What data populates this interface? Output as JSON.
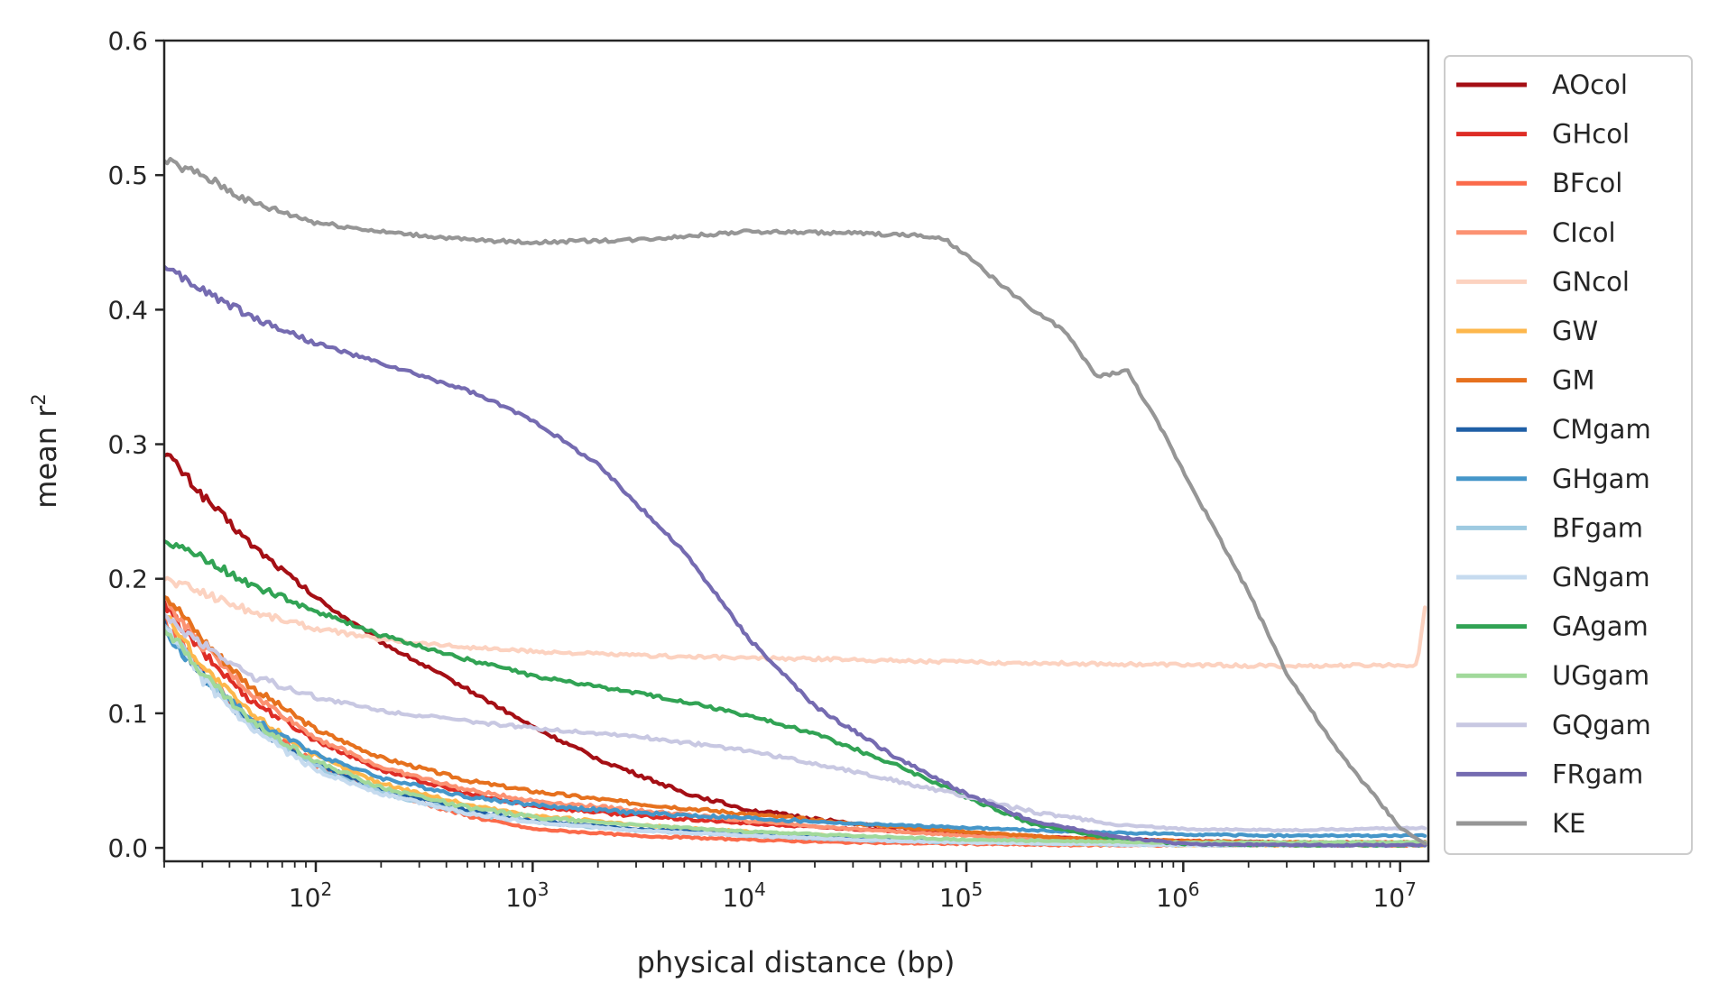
{
  "chart_data": {
    "type": "line",
    "xlabel": "physical distance (bp)",
    "ylabel": "mean r",
    "ylabel_superscript": "2",
    "x_scale": "log",
    "xlim": [
      20,
      13500000
    ],
    "ylim": [
      -0.01,
      0.6
    ],
    "y_ticks": [
      0.0,
      0.1,
      0.2,
      0.3,
      0.4,
      0.5,
      0.6
    ],
    "y_tick_labels": [
      "0.0",
      "0.1",
      "0.2",
      "0.3",
      "0.4",
      "0.5",
      "0.6"
    ],
    "x_ticks": [
      100,
      1000,
      10000,
      100000,
      1000000,
      10000000
    ],
    "x_tick_bases": [
      "10",
      "10",
      "10",
      "10",
      "10",
      "10"
    ],
    "x_tick_exponents": [
      "2",
      "3",
      "4",
      "5",
      "6",
      "7"
    ],
    "grid": false,
    "legend_position": "outside-right",
    "series": [
      {
        "name": "AOcol",
        "color": "#a50f15",
        "x": [
          20,
          30,
          50,
          100,
          200,
          500,
          1000,
          2000,
          5000,
          10000,
          30000,
          100000,
          300000,
          1000000,
          3000000,
          13000000
        ],
        "y": [
          0.295,
          0.262,
          0.226,
          0.186,
          0.153,
          0.118,
          0.09,
          0.066,
          0.041,
          0.028,
          0.018,
          0.011,
          0.007,
          0.005,
          0.004,
          0.003
        ]
      },
      {
        "name": "GHcol",
        "color": "#de2d26",
        "x": [
          20,
          30,
          50,
          100,
          200,
          500,
          1000,
          3000,
          10000,
          30000,
          100000,
          300000,
          1000000,
          3000000,
          13000000
        ],
        "y": [
          0.18,
          0.145,
          0.11,
          0.08,
          0.058,
          0.04,
          0.031,
          0.024,
          0.018,
          0.014,
          0.01,
          0.007,
          0.005,
          0.004,
          0.004
        ]
      },
      {
        "name": "BFcol",
        "color": "#fb6a4a",
        "x": [
          20,
          30,
          50,
          100,
          200,
          500,
          1000,
          3000,
          10000,
          30000,
          100000,
          300000,
          1000000,
          3000000,
          13000000
        ],
        "y": [
          0.17,
          0.13,
          0.095,
          0.062,
          0.042,
          0.024,
          0.014,
          0.009,
          0.006,
          0.004,
          0.003,
          0.002,
          0.002,
          0.002,
          0.002
        ]
      },
      {
        "name": "CIcol",
        "color": "#fc9272",
        "x": [
          20,
          30,
          50,
          100,
          200,
          500,
          1000,
          3000,
          10000,
          30000,
          100000,
          300000,
          1000000,
          3000000,
          13000000
        ],
        "y": [
          0.185,
          0.15,
          0.115,
          0.082,
          0.06,
          0.043,
          0.035,
          0.028,
          0.02,
          0.014,
          0.009,
          0.006,
          0.004,
          0.003,
          0.003
        ]
      },
      {
        "name": "GNcol",
        "color": "#fcd2c0",
        "x": [
          20,
          30,
          50,
          100,
          200,
          500,
          1000,
          3000,
          10000,
          30000,
          100000,
          300000,
          1000000,
          3000000,
          12000000,
          13000000
        ],
        "y": [
          0.2,
          0.19,
          0.176,
          0.163,
          0.155,
          0.149,
          0.146,
          0.143,
          0.141,
          0.14,
          0.138,
          0.137,
          0.136,
          0.135,
          0.136,
          0.18
        ]
      },
      {
        "name": "GW",
        "color": "#fdb74c",
        "x": [
          20,
          30,
          50,
          100,
          200,
          500,
          1000,
          3000,
          10000,
          30000,
          100000,
          300000,
          1000000,
          3000000,
          13000000
        ],
        "y": [
          0.175,
          0.135,
          0.1,
          0.068,
          0.048,
          0.032,
          0.024,
          0.017,
          0.012,
          0.008,
          0.005,
          0.003,
          0.002,
          0.002,
          0.002
        ]
      },
      {
        "name": "GM",
        "color": "#e6711e",
        "x": [
          20,
          30,
          50,
          100,
          200,
          500,
          1000,
          3000,
          10000,
          30000,
          100000,
          300000,
          1000000,
          3000000,
          13000000
        ],
        "y": [
          0.19,
          0.155,
          0.12,
          0.088,
          0.067,
          0.05,
          0.042,
          0.033,
          0.025,
          0.018,
          0.012,
          0.007,
          0.005,
          0.004,
          0.004
        ]
      },
      {
        "name": "CMgam",
        "color": "#1f5fa6",
        "x": [
          20,
          30,
          50,
          100,
          200,
          500,
          1000,
          3000,
          10000,
          30000,
          100000,
          300000,
          1000000,
          3000000,
          13000000
        ],
        "y": [
          0.165,
          0.128,
          0.092,
          0.062,
          0.043,
          0.028,
          0.02,
          0.014,
          0.01,
          0.007,
          0.005,
          0.004,
          0.003,
          0.003,
          0.003
        ]
      },
      {
        "name": "GHgam",
        "color": "#4596c9",
        "x": [
          20,
          30,
          50,
          100,
          200,
          500,
          1000,
          3000,
          10000,
          30000,
          100000,
          300000,
          1000000,
          3000000,
          13000000
        ],
        "y": [
          0.16,
          0.128,
          0.096,
          0.07,
          0.052,
          0.038,
          0.032,
          0.026,
          0.022,
          0.018,
          0.015,
          0.012,
          0.01,
          0.009,
          0.009
        ]
      },
      {
        "name": "BFgam",
        "color": "#9ecae1",
        "x": [
          20,
          30,
          50,
          100,
          200,
          500,
          1000,
          3000,
          10000,
          30000,
          100000,
          300000,
          1000000,
          3000000,
          13000000
        ],
        "y": [
          0.165,
          0.128,
          0.092,
          0.06,
          0.041,
          0.026,
          0.019,
          0.013,
          0.009,
          0.006,
          0.004,
          0.003,
          0.002,
          0.002,
          0.002
        ]
      },
      {
        "name": "GNgam",
        "color": "#c6dbef",
        "x": [
          20,
          30,
          50,
          100,
          200,
          500,
          1000,
          3000,
          10000,
          30000,
          100000,
          300000,
          1000000,
          3000000,
          13000000
        ],
        "y": [
          0.165,
          0.125,
          0.088,
          0.058,
          0.04,
          0.026,
          0.019,
          0.013,
          0.009,
          0.006,
          0.004,
          0.003,
          0.002,
          0.002,
          0.002
        ]
      },
      {
        "name": "GAgam",
        "color": "#31a354",
        "x": [
          20,
          30,
          50,
          100,
          200,
          500,
          1000,
          2000,
          5000,
          10000,
          20000,
          50000,
          100000,
          200000,
          500000,
          1000000,
          3000000,
          13000000
        ],
        "y": [
          0.23,
          0.215,
          0.196,
          0.176,
          0.158,
          0.14,
          0.128,
          0.12,
          0.109,
          0.098,
          0.085,
          0.06,
          0.038,
          0.018,
          0.006,
          0.003,
          0.002,
          0.002
        ]
      },
      {
        "name": "UGgam",
        "color": "#a1d99b",
        "x": [
          20,
          30,
          50,
          100,
          200,
          500,
          1000,
          3000,
          10000,
          30000,
          100000,
          300000,
          1000000,
          3000000,
          13000000
        ],
        "y": [
          0.165,
          0.13,
          0.094,
          0.064,
          0.045,
          0.03,
          0.023,
          0.017,
          0.012,
          0.009,
          0.006,
          0.005,
          0.004,
          0.004,
          0.004
        ]
      },
      {
        "name": "GQgam",
        "color": "#c8c8e2",
        "x": [
          20,
          30,
          50,
          100,
          200,
          500,
          1000,
          3000,
          10000,
          30000,
          100000,
          200000,
          500000,
          1000000,
          3000000,
          13000000
        ],
        "y": [
          0.17,
          0.152,
          0.128,
          0.112,
          0.102,
          0.094,
          0.089,
          0.083,
          0.072,
          0.057,
          0.038,
          0.027,
          0.017,
          0.014,
          0.013,
          0.015
        ]
      },
      {
        "name": "FRgam",
        "color": "#756bb1",
        "x": [
          20,
          30,
          50,
          100,
          200,
          500,
          1000,
          2000,
          5000,
          10000,
          20000,
          50000,
          100000,
          200000,
          500000,
          1000000,
          3000000,
          13000000
        ],
        "y": [
          0.43,
          0.415,
          0.395,
          0.375,
          0.36,
          0.34,
          0.318,
          0.285,
          0.22,
          0.155,
          0.105,
          0.065,
          0.04,
          0.02,
          0.008,
          0.003,
          0.002,
          0.002
        ]
      },
      {
        "name": "KE",
        "color": "#969696",
        "x": [
          20,
          30,
          50,
          100,
          200,
          500,
          1000,
          3000,
          10000,
          30000,
          60000,
          80000,
          100000,
          200000,
          280000,
          400000,
          550000,
          800000,
          1000000,
          2000000,
          3000000,
          5000000,
          10000000,
          13000000
        ],
        "y": [
          0.51,
          0.5,
          0.48,
          0.465,
          0.458,
          0.452,
          0.45,
          0.452,
          0.458,
          0.457,
          0.455,
          0.452,
          0.44,
          0.4,
          0.385,
          0.35,
          0.355,
          0.31,
          0.28,
          0.19,
          0.13,
          0.075,
          0.015,
          0.003
        ]
      }
    ]
  }
}
